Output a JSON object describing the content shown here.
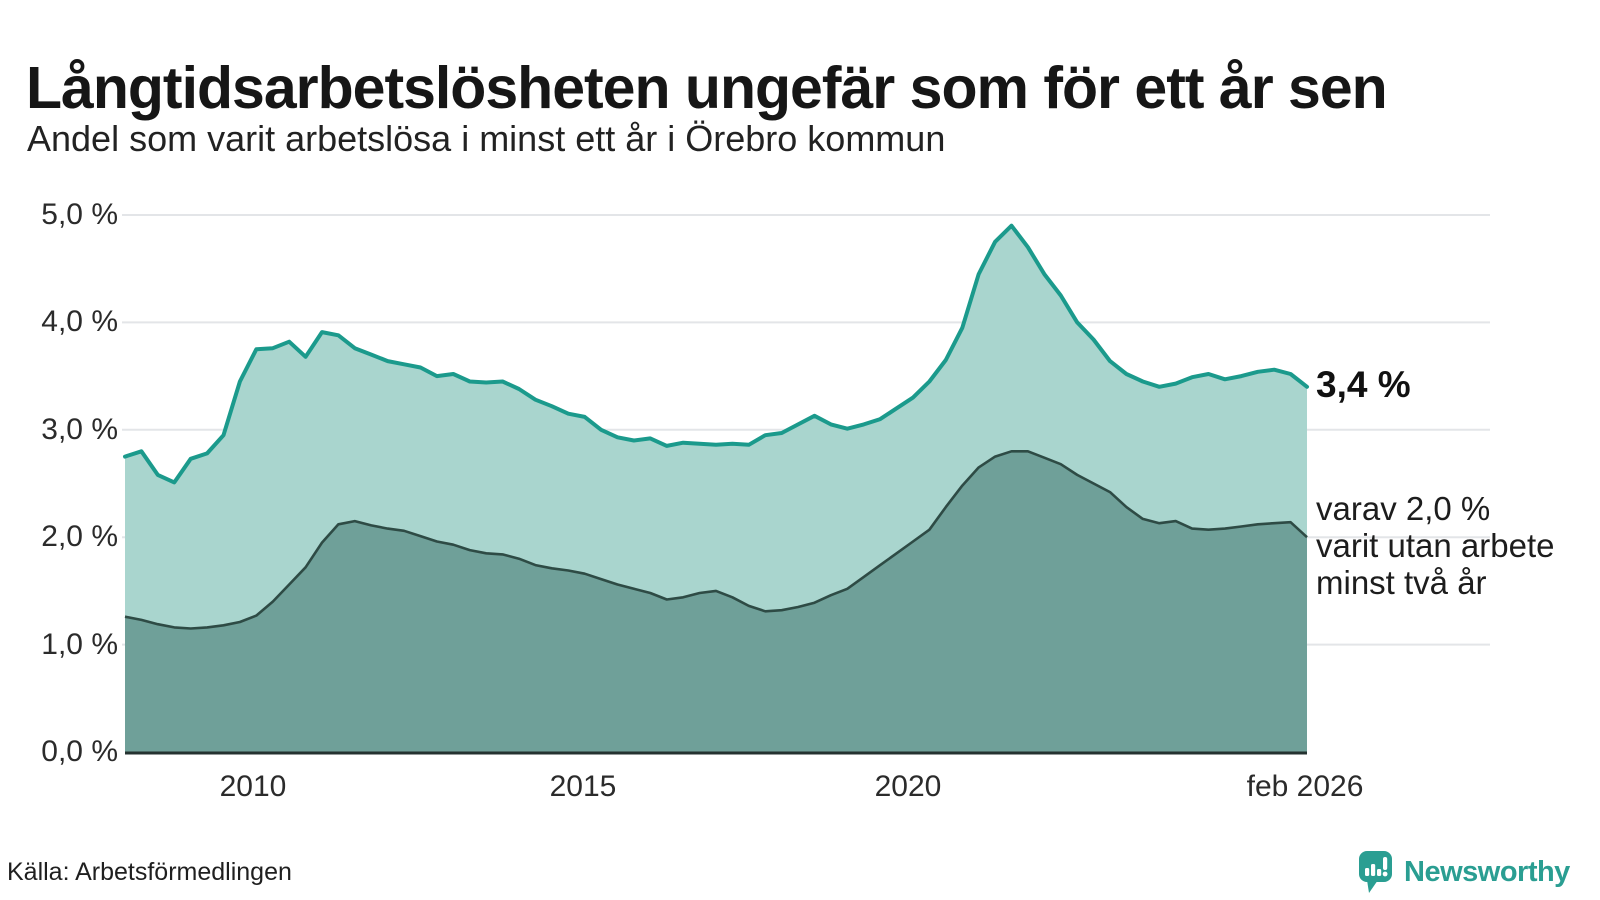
{
  "header": {
    "title": "Långtidsarbetslösheten ungefär som för ett år sen",
    "subtitle": "Andel som varit arbetslösa i minst ett år i Örebro kommun"
  },
  "annotations": {
    "latest_total": "3,4 %",
    "two_year_line1": "varav 2,0 %",
    "two_year_line2": "varit utan arbete",
    "two_year_line3": "minst två år"
  },
  "footer": {
    "source": "Källa: Arbetsförmedlingen",
    "brand_name": "Newsworthy"
  },
  "colors": {
    "total_line": "#1b9a8c",
    "total_fill": "#a9d5ce",
    "two_year_line": "#2e4b45",
    "two_year_fill": "#6fa099",
    "gridline": "#e3e5e8",
    "axis_line": "#243230",
    "brand_teal": "#2a9e92"
  },
  "chart_data": {
    "type": "area",
    "title": "Långtidsarbetslösheten ungefär som för ett år sen",
    "subtitle": "Andel som varit arbetslösa i minst ett år i Örebro kommun",
    "unit": "%",
    "x_start": "2008-02",
    "x_end": "2026-02",
    "interval_months": 3,
    "x_tick_labels": [
      "2010",
      "2015",
      "2020",
      "feb 2026"
    ],
    "y_tick_labels": [
      "0,0 %",
      "1,0 %",
      "2,0 %",
      "3,0 %",
      "4,0 %",
      "5,0 %"
    ],
    "ylim": [
      0,
      5
    ],
    "grid": true,
    "legend_position": "right-annotations",
    "latest": {
      "total_pct": 3.4,
      "two_years_pct": 2.0
    },
    "series": [
      {
        "name": "Arbetslösa minst ett år",
        "values": [
          2.75,
          2.8,
          2.58,
          2.51,
          2.73,
          2.78,
          2.95,
          3.45,
          3.75,
          3.76,
          3.82,
          3.68,
          3.91,
          3.88,
          3.76,
          3.7,
          3.64,
          3.61,
          3.58,
          3.5,
          3.52,
          3.45,
          3.44,
          3.45,
          3.38,
          3.28,
          3.22,
          3.15,
          3.12,
          3.0,
          2.93,
          2.9,
          2.92,
          2.85,
          2.88,
          2.87,
          2.86,
          2.87,
          2.86,
          2.95,
          2.97,
          3.05,
          3.13,
          3.05,
          3.01,
          3.05,
          3.1,
          3.2,
          3.3,
          3.45,
          3.65,
          3.95,
          4.45,
          4.75,
          4.9,
          4.7,
          4.45,
          4.25,
          4.0,
          3.84,
          3.64,
          3.52,
          3.45,
          3.4,
          3.43,
          3.49,
          3.52,
          3.47,
          3.5,
          3.54,
          3.56,
          3.52,
          3.4
        ]
      },
      {
        "name": "varav utan arbete minst två år",
        "values": [
          1.26,
          1.23,
          1.19,
          1.16,
          1.15,
          1.16,
          1.18,
          1.21,
          1.27,
          1.4,
          1.56,
          1.72,
          1.95,
          2.12,
          2.15,
          2.11,
          2.08,
          2.06,
          2.01,
          1.96,
          1.93,
          1.88,
          1.85,
          1.84,
          1.8,
          1.74,
          1.71,
          1.69,
          1.66,
          1.61,
          1.56,
          1.52,
          1.48,
          1.42,
          1.44,
          1.48,
          1.5,
          1.44,
          1.36,
          1.31,
          1.32,
          1.35,
          1.39,
          1.46,
          1.52,
          1.63,
          1.74,
          1.85,
          1.96,
          2.07,
          2.28,
          2.48,
          2.65,
          2.75,
          2.8,
          2.8,
          2.74,
          2.68,
          2.58,
          2.5,
          2.42,
          2.28,
          2.17,
          2.13,
          2.15,
          2.08,
          2.07,
          2.08,
          2.1,
          2.12,
          2.13,
          2.14,
          2.0
        ]
      }
    ]
  }
}
